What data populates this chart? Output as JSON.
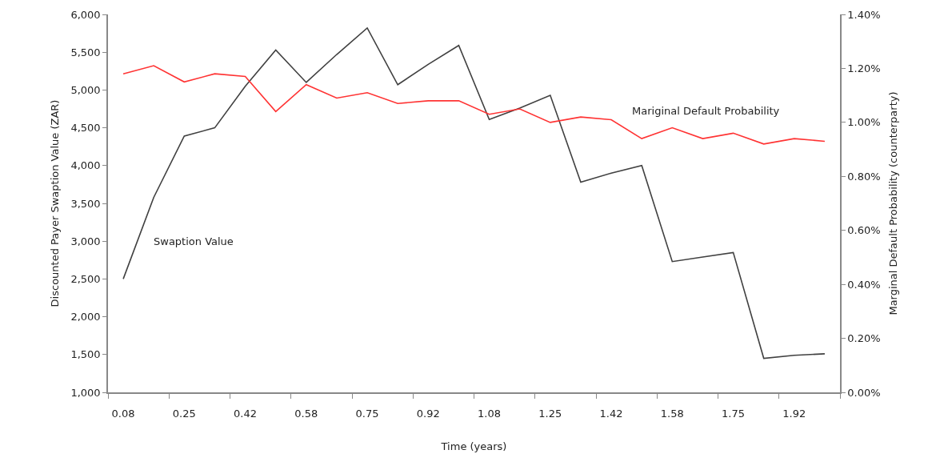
{
  "chart_data": {
    "type": "line",
    "xlabel": "Time (years)",
    "ylabel": "Discounted Payer Swaption Value (ZAR)",
    "y2label": "Marginal Default Probability (counterparty)",
    "categories": [
      "0.08",
      null,
      "0.25",
      null,
      "0.42",
      null,
      "0.58",
      null,
      "0.75",
      null,
      "0.92",
      null,
      "1.08",
      null,
      "1.25",
      null,
      "1.42",
      null,
      "1.58",
      null,
      "1.75",
      null,
      "1.92",
      null
    ],
    "series": [
      {
        "name": "Swaption Value",
        "color": "#404040",
        "values": [
          2500,
          3580,
          4390,
          4500,
          5050,
          5530,
          5100,
          5470,
          5820,
          5070,
          5340,
          5590,
          4610,
          4760,
          4930,
          3780,
          3900,
          4000,
          2730,
          2790,
          2850,
          1450,
          1490,
          1510
        ]
      },
      {
        "name": "Mariginal Default Probability",
        "color": "#ff3333",
        "axis": "y2",
        "values": [
          1.18,
          1.21,
          1.15,
          1.18,
          1.17,
          1.04,
          1.14,
          1.09,
          1.11,
          1.07,
          1.08,
          1.08,
          1.03,
          1.05,
          1.0,
          1.02,
          1.01,
          0.94,
          0.98,
          0.94,
          0.96,
          0.92,
          0.94,
          0.93
        ]
      }
    ],
    "ylim": [
      1000,
      6000
    ],
    "yticks": [
      {
        "value": 1000,
        "label": "1,000"
      },
      {
        "value": 1500,
        "label": "1,500"
      },
      {
        "value": 2000,
        "label": "2,000"
      },
      {
        "value": 2500,
        "label": "2,500"
      },
      {
        "value": 3000,
        "label": "3,000"
      },
      {
        "value": 3500,
        "label": "3,500"
      },
      {
        "value": 4000,
        "label": "4,000"
      },
      {
        "value": 4500,
        "label": "4,500"
      },
      {
        "value": 5000,
        "label": "5,000"
      },
      {
        "value": 5500,
        "label": "5,500"
      },
      {
        "value": 6000,
        "label": "6,000"
      }
    ],
    "y2lim": [
      0,
      1.4
    ],
    "y2ticks": [
      {
        "value": 0,
        "label": "0.00%"
      },
      {
        "value": 0.2,
        "label": "0.20%"
      },
      {
        "value": 0.4,
        "label": "0.40%"
      },
      {
        "value": 0.6,
        "label": "0.60%"
      },
      {
        "value": 0.8,
        "label": "0.80%"
      },
      {
        "value": 1.0,
        "label": "1.00%"
      },
      {
        "value": 1.2,
        "label": "1.20%"
      },
      {
        "value": 1.4,
        "label": "1.40%"
      }
    ],
    "grid": false,
    "legend": false,
    "marker": "none",
    "line_style": "solid"
  }
}
